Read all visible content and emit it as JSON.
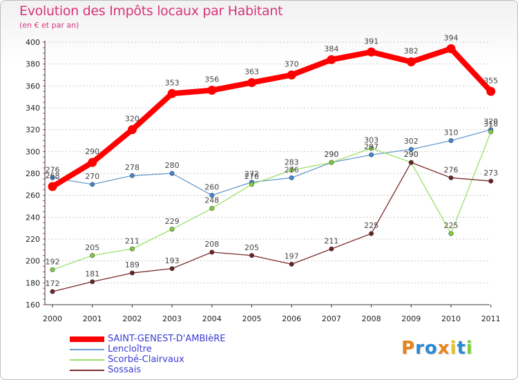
{
  "header": {
    "title": "Evolution des Impôts locaux par Habitant",
    "subtitle": "(en € et par an)"
  },
  "chart_data": {
    "type": "line",
    "title": "Evolution des Impôts locaux par Habitant",
    "subtitle": "(en € et par an)",
    "xlabel": "",
    "ylabel": "",
    "x": [
      "2000",
      "2001",
      "2002",
      "2003",
      "2004",
      "2005",
      "2006",
      "2007",
      "2008",
      "2009",
      "2010",
      "2011"
    ],
    "ylim": [
      160,
      400
    ],
    "yticks": [
      160,
      180,
      200,
      220,
      240,
      260,
      280,
      300,
      320,
      340,
      360,
      380,
      400
    ],
    "grid": "horizontal dashed",
    "legend_position": "bottom-left",
    "series": [
      {
        "name": "SAINT-GENEST-D'AMBIèRE",
        "color": "#ff0000",
        "point_color": "#ff0000",
        "width": 8,
        "values": [
          268,
          290,
          320,
          353,
          356,
          363,
          370,
          384,
          391,
          382,
          394,
          355
        ]
      },
      {
        "name": "Lencloître",
        "color": "#6699cc",
        "point_color": "#3d86d6",
        "width": 1.3,
        "values": [
          276,
          270,
          278,
          280,
          260,
          272,
          276,
          290,
          297,
          302,
          310,
          320
        ]
      },
      {
        "name": "Scorbé-Clairvaux",
        "color": "#99e066",
        "point_color": "#7dd03a",
        "width": 1.3,
        "values": [
          192,
          205,
          211,
          229,
          248,
          270,
          283,
          290,
          303,
          290,
          225,
          318
        ]
      },
      {
        "name": "Sossais",
        "color": "#7a2a2a",
        "point_color": "#6b2020",
        "width": 1.3,
        "values": [
          172,
          181,
          189,
          193,
          208,
          205,
          197,
          211,
          225,
          290,
          276,
          273
        ]
      }
    ]
  },
  "legend": {
    "items": [
      {
        "label": "SAINT-GENEST-D'AMBIèRE",
        "color": "#ff0000",
        "width": 8
      },
      {
        "label": "Lencloître",
        "color": "#6699cc",
        "width": 2
      },
      {
        "label": "Scorbé-Clairvaux",
        "color": "#99e066",
        "width": 2
      },
      {
        "label": "Sossais",
        "color": "#7a2a2a",
        "width": 2
      }
    ]
  },
  "logo": {
    "text": "Proxiti",
    "letter_colors": [
      "#e8831c",
      "#2a8ad4",
      "#2a8ad4",
      "#e8831c",
      "#e8c11c",
      "#2a8ad4",
      "#7dd03a"
    ]
  }
}
